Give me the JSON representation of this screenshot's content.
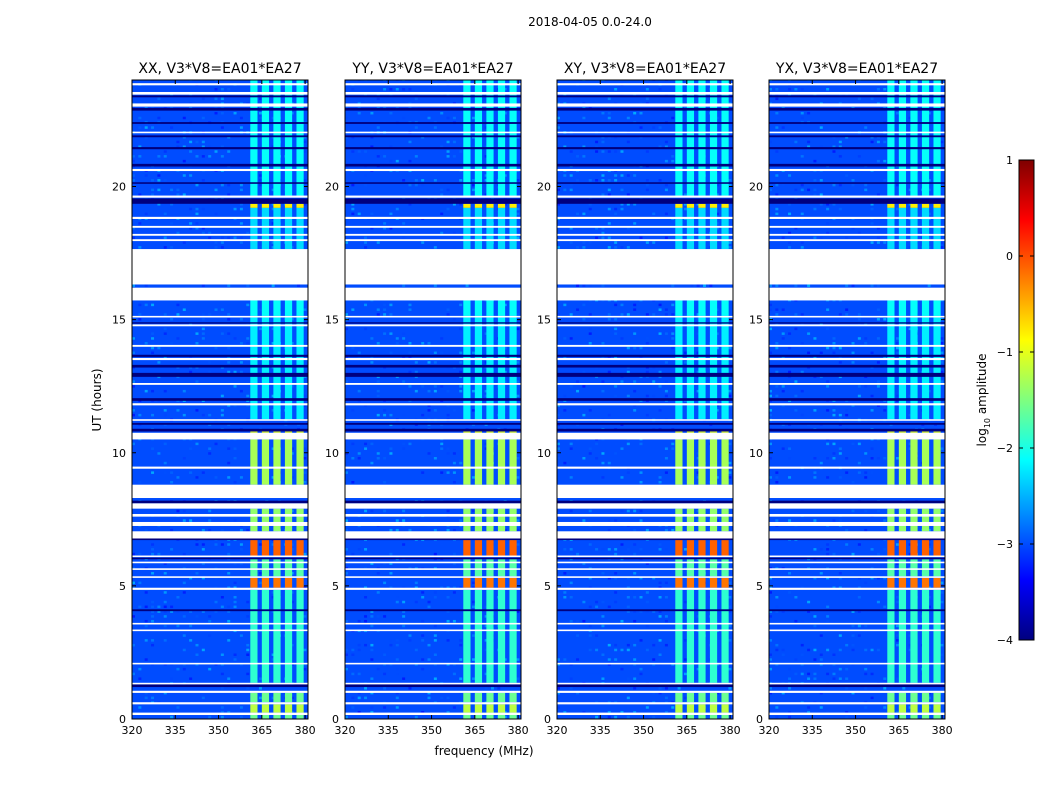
{
  "figure": {
    "suptitle": "2018-04-05 0.0-24.0"
  },
  "colorbar": {
    "label": "log10 amplitude",
    "label_main": "log",
    "label_sub": "10",
    "label_tail": " amplitude",
    "min": -4,
    "max": 1,
    "ticks": [
      1,
      0,
      -1,
      -2,
      -3,
      -4
    ],
    "tick_labels": [
      "1",
      "0",
      "−1",
      "−2",
      "−3",
      "−4"
    ],
    "cmap": [
      "#00007f",
      "#0000ff",
      "#007fff",
      "#00ffff",
      "#7fff7f",
      "#ffff00",
      "#ff7f00",
      "#ff0000",
      "#7f0000"
    ]
  },
  "chart_data": {
    "type": "heatmap",
    "xlabel": "frequency (MHz)",
    "ylabel": "UT (hours)",
    "xlim": [
      320,
      381
    ],
    "ylim": [
      0,
      24
    ],
    "x_ticks": [
      320,
      335,
      350,
      365,
      380
    ],
    "y_ticks": [
      0,
      5,
      10,
      15,
      20
    ],
    "panels": [
      {
        "title": "XX, V3*V8=EA01*EA27",
        "pol": "XX"
      },
      {
        "title": "YY, V3*V8=EA01*EA27",
        "pol": "YY"
      },
      {
        "title": "XY, V3*V8=EA01*EA27",
        "pol": "XY"
      },
      {
        "title": "YX, V3*V8=EA01*EA27",
        "pol": "YX"
      }
    ],
    "background_level": -3,
    "rfi_band_mhz": [
      360,
      380
    ],
    "rfi_channels_mhz": [
      [
        361.0,
        363.5
      ],
      [
        365.0,
        367.5
      ],
      [
        369.0,
        371.5
      ],
      [
        373.0,
        375.5
      ],
      [
        377.0,
        379.5
      ]
    ],
    "flagged_hours": [
      [
        0.15,
        0.24
      ],
      [
        0.55,
        0.63
      ],
      [
        0.98,
        1.06
      ],
      [
        1.3,
        1.36
      ],
      [
        2.05,
        2.11
      ],
      [
        3.3,
        3.36
      ],
      [
        3.55,
        3.61
      ],
      [
        4.85,
        4.93
      ],
      [
        5.3,
        5.36
      ],
      [
        5.6,
        5.66
      ],
      [
        5.85,
        5.91
      ],
      [
        6.08,
        6.14
      ],
      [
        6.78,
        7.05
      ],
      [
        7.25,
        7.4
      ],
      [
        7.6,
        7.7
      ],
      [
        7.9,
        8.1
      ],
      [
        8.3,
        8.8
      ],
      [
        9.4,
        9.48
      ],
      [
        10.5,
        10.75
      ],
      [
        11.2,
        11.26
      ],
      [
        11.78,
        11.86
      ],
      [
        12.55,
        12.62
      ],
      [
        13.48,
        13.56
      ],
      [
        13.98,
        14.05
      ],
      [
        14.75,
        14.82
      ],
      [
        15.08,
        15.14
      ],
      [
        15.72,
        16.2
      ],
      [
        16.32,
        17.65
      ],
      [
        17.95,
        18.02
      ],
      [
        18.15,
        18.22
      ],
      [
        18.45,
        18.52
      ],
      [
        18.78,
        18.86
      ],
      [
        19.58,
        19.66
      ],
      [
        20.58,
        20.66
      ],
      [
        22.0,
        22.06
      ],
      [
        23.0,
        23.12
      ],
      [
        23.45,
        23.55
      ],
      [
        23.8,
        23.88
      ]
    ],
    "dark_hours": [
      [
        1.2,
        1.3
      ],
      [
        4.05,
        4.12
      ],
      [
        6.0,
        6.06
      ],
      [
        6.72,
        6.78
      ],
      [
        8.1,
        8.2
      ],
      [
        10.8,
        10.9
      ],
      [
        11.05,
        11.12
      ],
      [
        11.95,
        12.05
      ],
      [
        12.85,
        13.0
      ],
      [
        13.2,
        13.3
      ],
      [
        13.6,
        13.68
      ],
      [
        14.85,
        14.9
      ],
      [
        19.35,
        19.55
      ],
      [
        20.1,
        20.16
      ],
      [
        20.75,
        20.85
      ],
      [
        21.4,
        21.48
      ],
      [
        21.85,
        21.92
      ],
      [
        22.35,
        22.42
      ],
      [
        22.85,
        22.95
      ],
      [
        23.35,
        23.42
      ]
    ],
    "rfi_rows": [
      {
        "hours": [
          0.0,
          0.15
        ],
        "level": -1.6
      },
      {
        "hours": [
          0.24,
          0.55
        ],
        "level": -1.2
      },
      {
        "hours": [
          0.63,
          0.98
        ],
        "level": -1.6
      },
      {
        "hours": [
          1.36,
          4.85
        ],
        "level": -1.9
      },
      {
        "hours": [
          4.93,
          5.3
        ],
        "level": -0.2
      },
      {
        "hours": [
          5.36,
          6.0
        ],
        "level": -1.7
      },
      {
        "hours": [
          6.14,
          6.72
        ],
        "level": -0.1
      },
      {
        "hours": [
          7.05,
          7.9
        ],
        "level": -1.4
      },
      {
        "hours": [
          8.8,
          10.5
        ],
        "level": -1.3
      },
      {
        "hours": [
          10.75,
          10.8
        ],
        "level": -1.0
      },
      {
        "hours": [
          11.26,
          15.08
        ],
        "level": -2.2
      },
      {
        "hours": [
          15.14,
          15.72
        ],
        "level": -2.1
      },
      {
        "hours": [
          17.65,
          19.2
        ],
        "level": -2.3
      },
      {
        "hours": [
          19.2,
          19.35
        ],
        "level": -0.8
      },
      {
        "hours": [
          19.66,
          24.0
        ],
        "level": -2.1
      }
    ]
  }
}
